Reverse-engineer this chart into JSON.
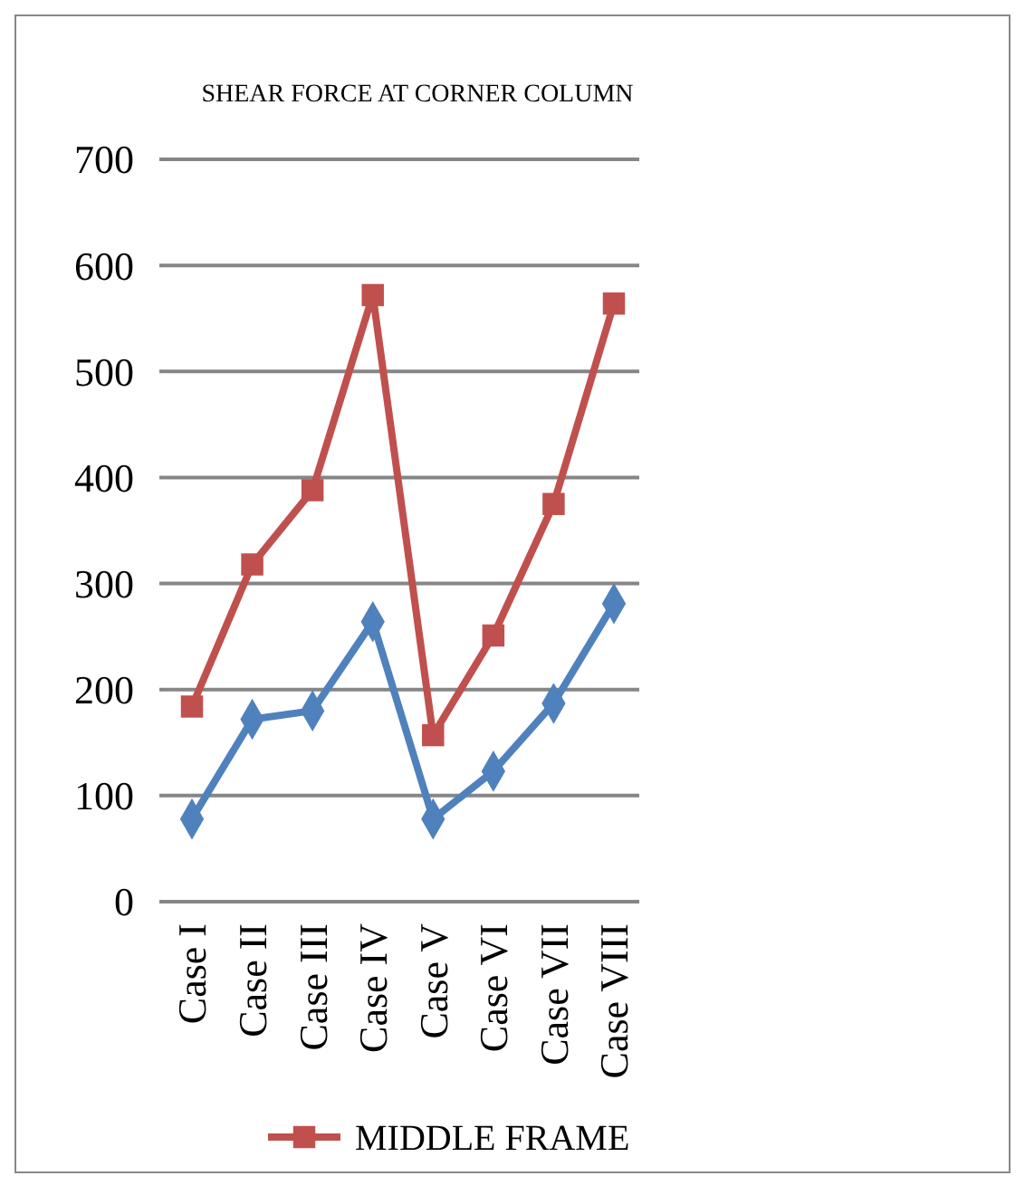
{
  "chart_data": {
    "type": "line",
    "title": "SHEAR FORCE AT CORNER COLUMN",
    "categories": [
      "Case I",
      "Case II",
      "Case III",
      "Case IV",
      "Case V",
      "Case VI",
      "Case VII",
      "Case VIII"
    ],
    "series": [
      {
        "color": "#4f81bd",
        "marker": "diamond",
        "values": [
          78,
          172,
          180,
          264,
          78,
          123,
          187,
          281
        ]
      },
      {
        "name": "MIDDLE FRAME",
        "color": "#c0504d",
        "marker": "square",
        "values": [
          184,
          318,
          388,
          572,
          157,
          251,
          375,
          564
        ]
      }
    ],
    "ylim": [
      0,
      700
    ],
    "yticks": [
      0,
      100,
      200,
      300,
      400,
      500,
      600,
      700
    ],
    "grid": "y",
    "legend": "bottom",
    "line_style": "solid"
  }
}
